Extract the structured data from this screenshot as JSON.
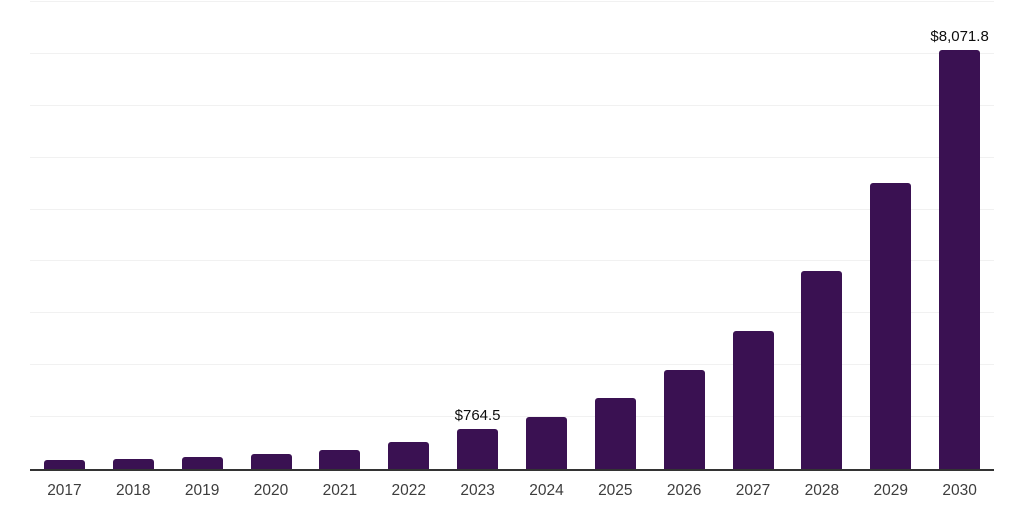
{
  "chart_data": {
    "type": "bar",
    "title": "",
    "xlabel": "",
    "ylabel": "",
    "categories": [
      "2017",
      "2018",
      "2019",
      "2020",
      "2021",
      "2022",
      "2023",
      "2024",
      "2025",
      "2026",
      "2027",
      "2028",
      "2029",
      "2030"
    ],
    "values": [
      170,
      195,
      225,
      290,
      370,
      525,
      764.5,
      1005,
      1370,
      1900,
      2665,
      3820,
      5510,
      8071.8
    ],
    "data_labels": {
      "2023": "$764.5",
      "2030": "$8,071.8"
    },
    "ylim": [
      0,
      9000
    ],
    "gridline_interval": 1000,
    "grid_visible": true,
    "legend": "none",
    "colors": {
      "bar": "#3a1152",
      "axis_line": "#333333",
      "gridline": "#f1f1f1",
      "data_label": "#0d0d0d",
      "tick_label": "#3d3d3d",
      "background": "#ffffff"
    }
  }
}
